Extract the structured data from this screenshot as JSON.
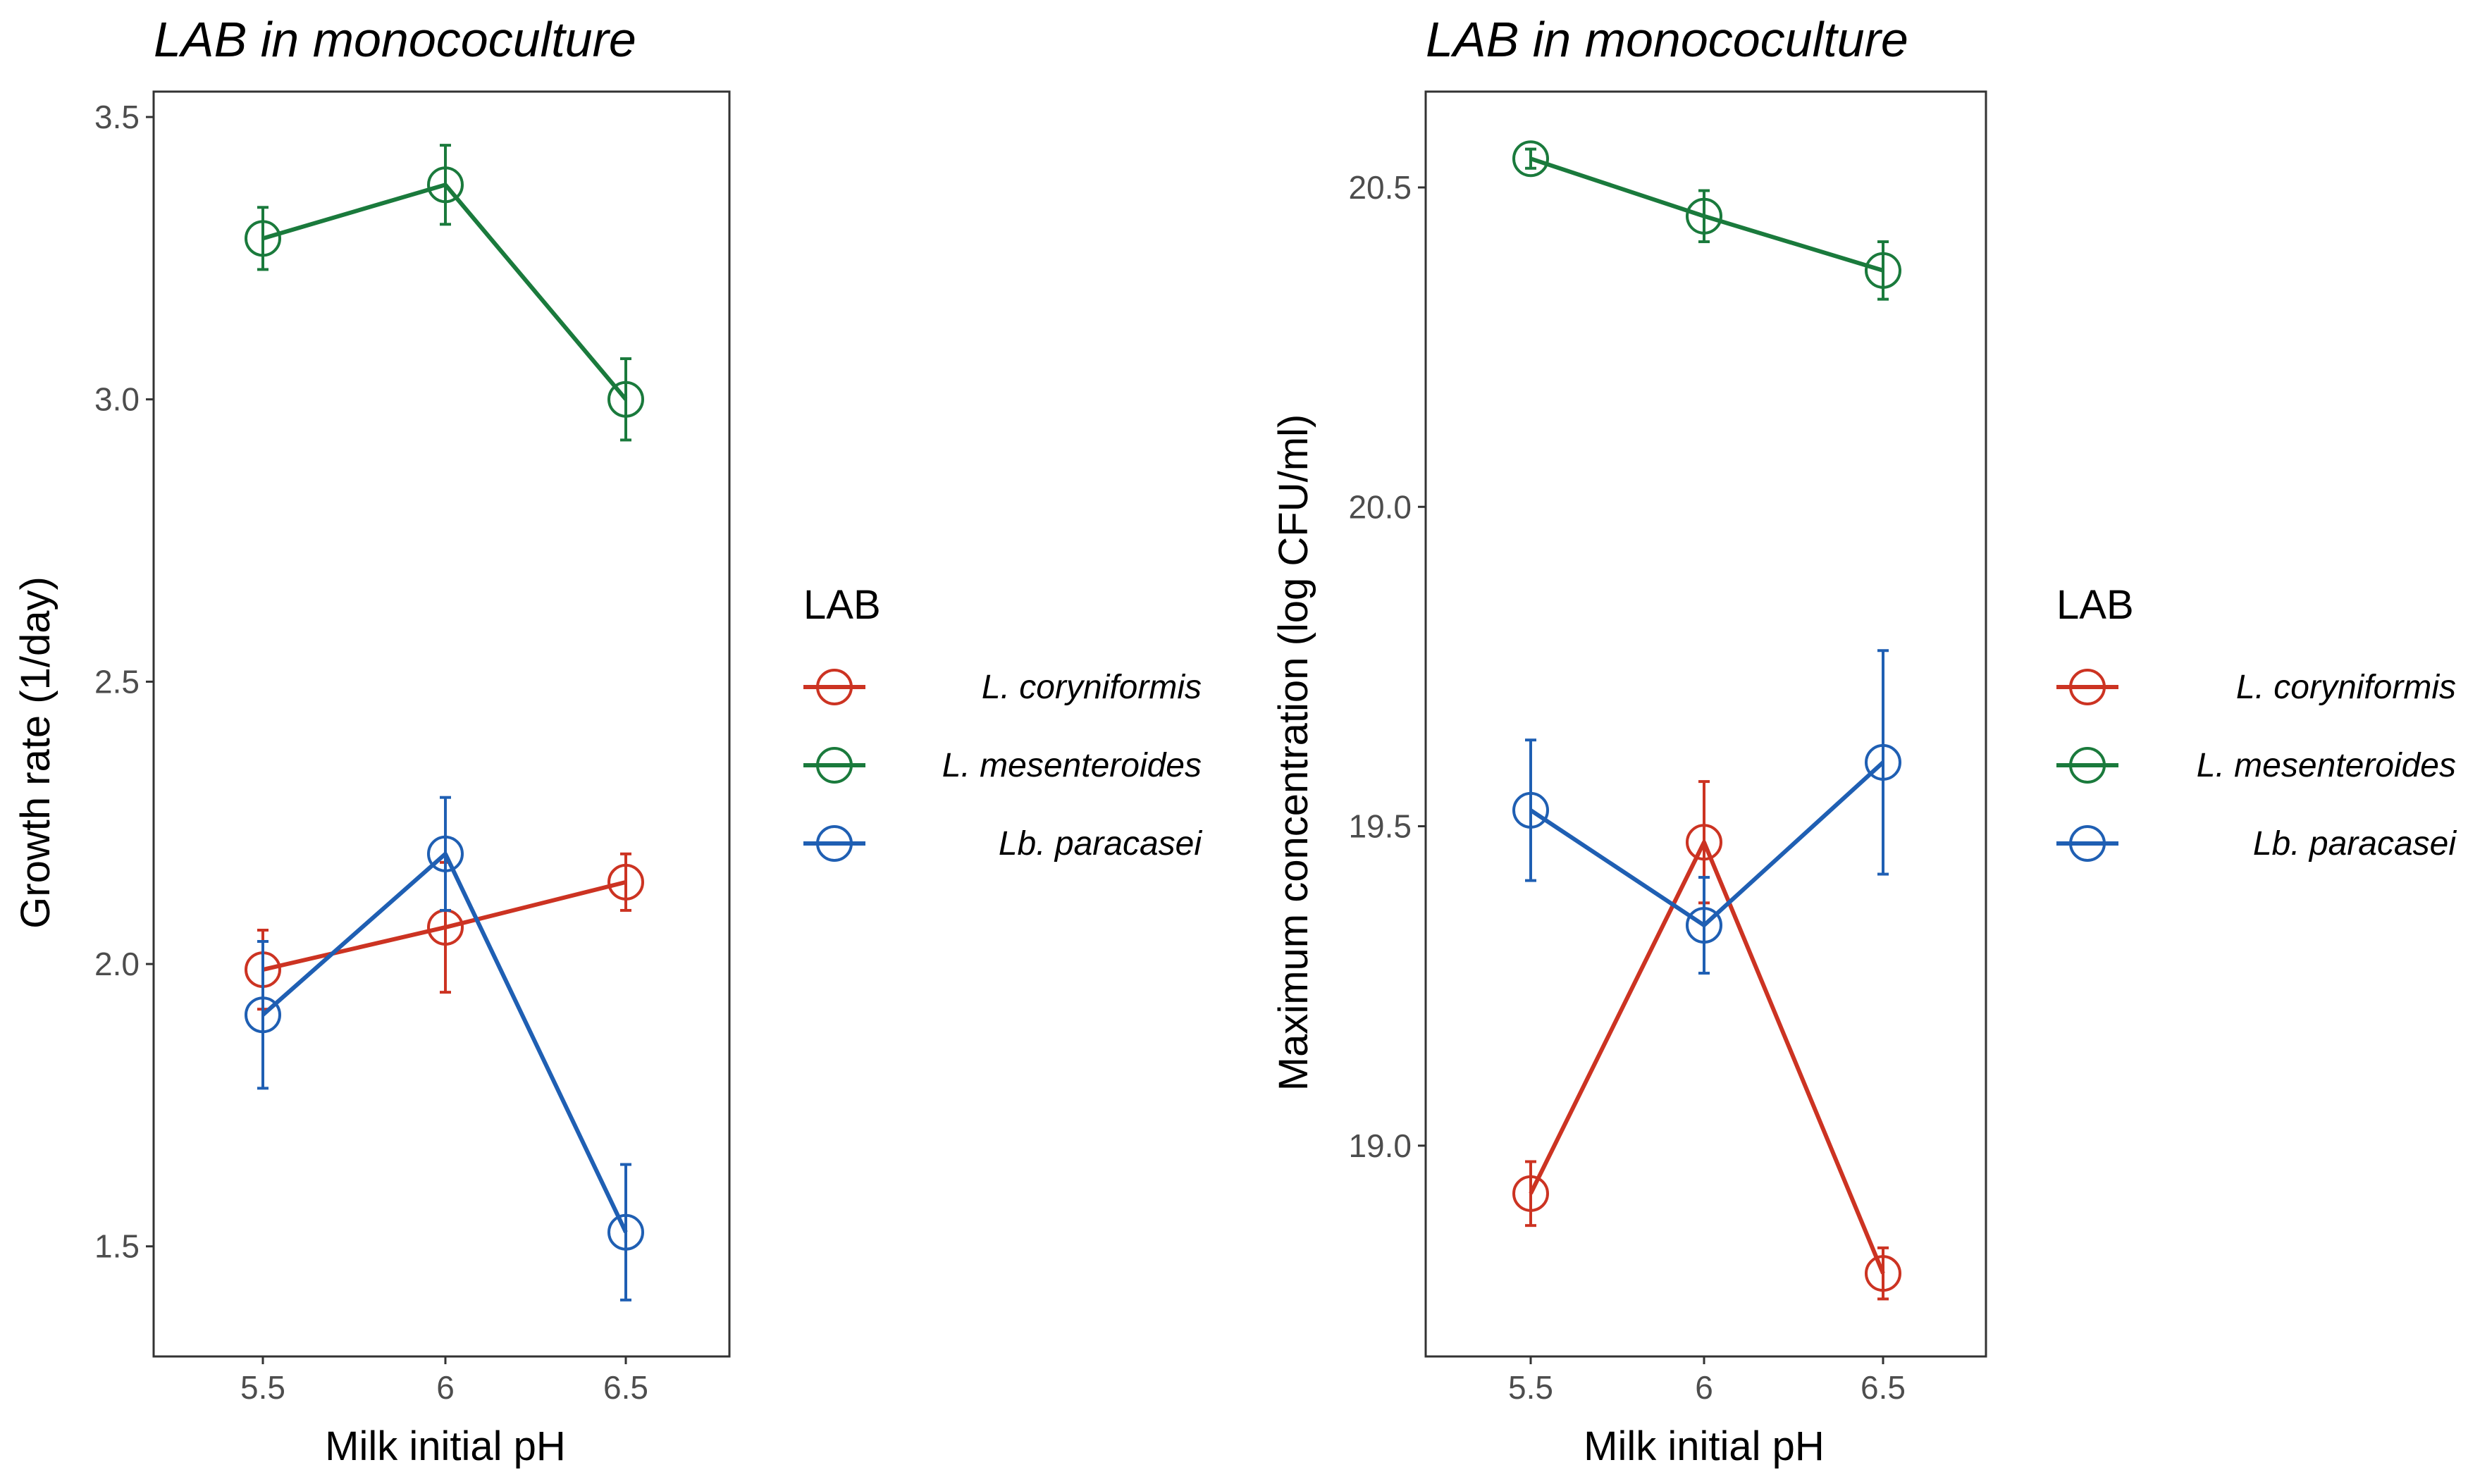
{
  "chart_data": [
    {
      "type": "line",
      "title": "LAB in monococulture",
      "xlabel": "Milk initial pH",
      "ylabel": "Growth rate (1/day)",
      "categories": [
        "5.5",
        "6",
        "6.5"
      ],
      "yticks": [
        1.5,
        2.0,
        2.5,
        3.0,
        3.5
      ],
      "ytick_labels": [
        "1.5",
        "2.0",
        "2.5",
        "3.0",
        "3.5"
      ],
      "ylim": [
        1.305,
        3.545
      ],
      "grid": true,
      "legend": {
        "title": "LAB",
        "position": "right"
      },
      "series": [
        {
          "name": "L. coryniformis",
          "color": "#CC3322",
          "values": [
            1.99,
            2.065,
            2.145
          ],
          "errors": [
            0.07,
            0.115,
            0.05
          ]
        },
        {
          "name": "L. mesenteroides",
          "color": "#1A7A3C",
          "values": [
            3.285,
            3.38,
            3.0
          ],
          "errors": [
            0.055,
            0.07,
            0.072
          ]
        },
        {
          "name": "Lb. paracasei",
          "color": "#1F5FB3",
          "values": [
            1.91,
            2.195,
            1.525
          ],
          "errors": [
            0.13,
            0.1,
            0.12
          ]
        }
      ]
    },
    {
      "type": "line",
      "title": "LAB in monococulture",
      "xlabel": "Milk initial pH",
      "ylabel": "Maximum concentration (log CFU/ml)",
      "categories": [
        "5.5",
        "6",
        "6.5"
      ],
      "yticks": [
        19.0,
        19.5,
        20.0,
        20.5
      ],
      "ytick_labels": [
        "19.0",
        "19.5",
        "20.0",
        "20.5"
      ],
      "ylim": [
        18.67,
        20.65
      ],
      "grid": true,
      "legend": {
        "title": "LAB",
        "position": "right"
      },
      "series": [
        {
          "name": "L. coryniformis",
          "color": "#CC3322",
          "values": [
            18.925,
            19.475,
            18.8
          ],
          "errors": [
            0.05,
            0.095,
            0.04
          ]
        },
        {
          "name": "L. mesenteroides",
          "color": "#1A7A3C",
          "values": [
            20.545,
            20.455,
            20.37
          ],
          "errors": [
            0.015,
            0.04,
            0.045
          ]
        },
        {
          "name": "Lb. paracasei",
          "color": "#1F5FB3",
          "values": [
            19.525,
            19.345,
            19.6
          ],
          "errors": [
            0.11,
            0.075,
            0.175
          ]
        }
      ]
    }
  ]
}
